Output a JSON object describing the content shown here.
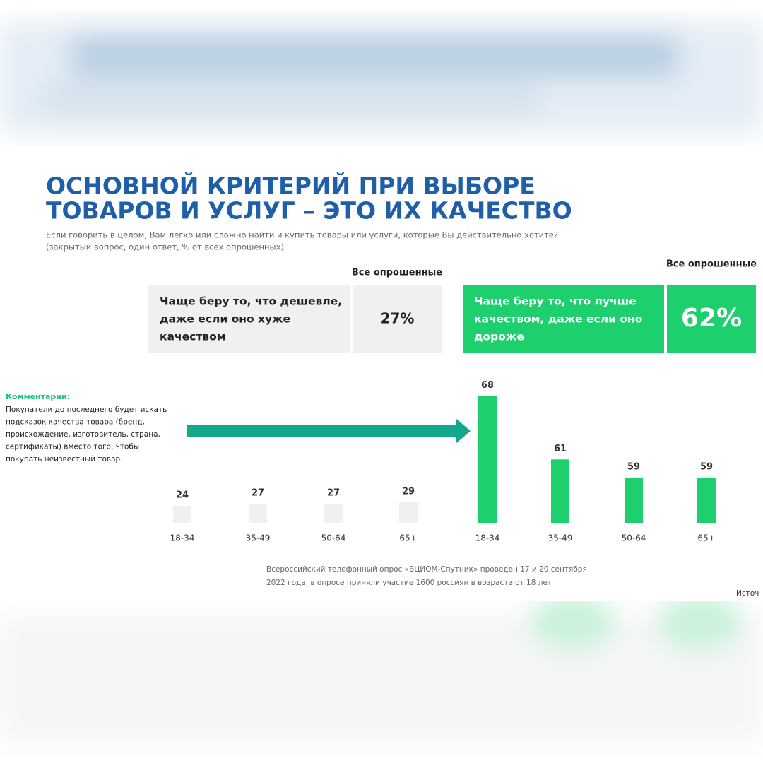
{
  "title_lines": [
    "ОСНОВНОЙ КРИТЕРИЙ ПРИ ВЫБОРЕ",
    "ТОВАРОВ И УСЛУГ – ЭТО ИХ КАЧЕСТВО"
  ],
  "question": "Если говорить в целом, Вам легко или сложно найти и купить товары или услуги, которые Вы действительно хотите?",
  "question_note": "(закрытый вопрос, один ответ, % от всех опрошенных)",
  "options": [
    {
      "header": "Все опрошенные",
      "label_lines": [
        "Чаще беру то, что дешевле,",
        "даже если оно хуже",
        "качеством"
      ],
      "value": 27,
      "value_label": "27%"
    },
    {
      "header": "Все опрошенные",
      "label_lines": [
        "Чаще беру то, что лучше",
        "качеством, даже если оно",
        "дороже"
      ],
      "value": 62,
      "value_label": "62%"
    }
  ],
  "comment": {
    "heading": "Комментарий:",
    "lines": [
      "Покупатели до последнего будет искать",
      "подсказок качества товара (бренд,",
      "происхождение, изготовитель, страна,",
      "сертификаты) вместо того, чтобы",
      "покупать неизвестный товар."
    ]
  },
  "chart_data": [
    {
      "type": "bar",
      "categories": [
        "18-34",
        "35-49",
        "50-64",
        "65+"
      ],
      "values": [
        24,
        27,
        27,
        29
      ],
      "color": "#f0f0f0",
      "ylim": [
        0,
        240
      ]
    },
    {
      "type": "bar",
      "categories": [
        "18-34",
        "35-49",
        "50-64",
        "65+"
      ],
      "values": [
        68,
        61,
        59,
        59
      ],
      "color": "#1ecf6e",
      "ylim": [
        54,
        70
      ]
    }
  ],
  "footer_lines": [
    "Всероссийский телефонный опрос «ВЦИОМ-Спутник» проведен 17 и 20 сентября",
    "2022 года,  в опросе приняли участие 1600 россиян в возрасте от 18 лет"
  ],
  "source": "Источ"
}
